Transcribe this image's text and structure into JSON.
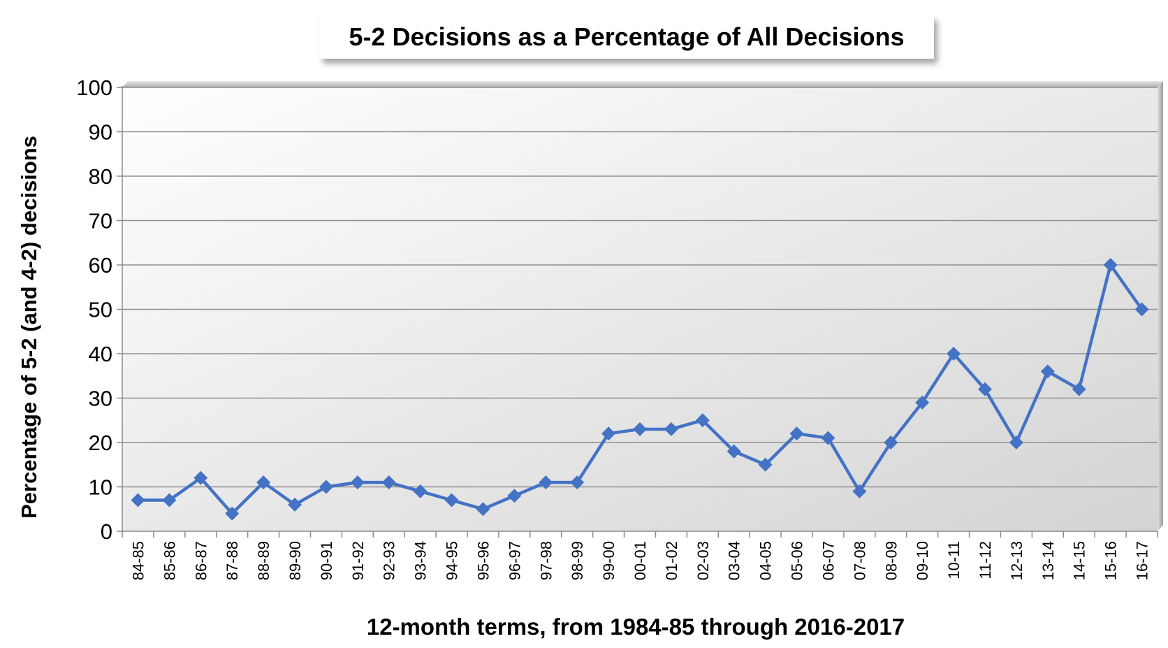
{
  "chart_data": {
    "type": "line",
    "title": "5-2 Decisions as a Percentage of All Decisions",
    "xlabel": "12-month terms, from 1984-85 through 2016-2017",
    "ylabel": "Percentage of 5-2 (and 4-2) decisions",
    "ylim": [
      0,
      100
    ],
    "yticks": [
      0,
      10,
      20,
      30,
      40,
      50,
      60,
      70,
      80,
      90,
      100
    ],
    "grid": true,
    "legend": "none",
    "categories": [
      "84-85",
      "85-86",
      "86-87",
      "87-88",
      "88-89",
      "89-90",
      "90-91",
      "91-92",
      "92-93",
      "93-94",
      "94-95",
      "95-96",
      "96-97",
      "97-98",
      "98-99",
      "99-00",
      "00-01",
      "01-02",
      "02-03",
      "03-04",
      "04-05",
      "05-06",
      "06-07",
      "07-08",
      "08-09",
      "09-10",
      "10-11",
      "11-12",
      "12-13",
      "13-14",
      "14-15",
      "15-16",
      "16-17"
    ],
    "series": [
      {
        "values": [
          7,
          7,
          12,
          4,
          11,
          6,
          10,
          11,
          11,
          9,
          7,
          5,
          8,
          11,
          11,
          22,
          23,
          23,
          25,
          18,
          15,
          22,
          21,
          9,
          20,
          29,
          40,
          32,
          20,
          36,
          32,
          60,
          50
        ],
        "color": "#4472C4",
        "marker": "diamond"
      }
    ]
  }
}
